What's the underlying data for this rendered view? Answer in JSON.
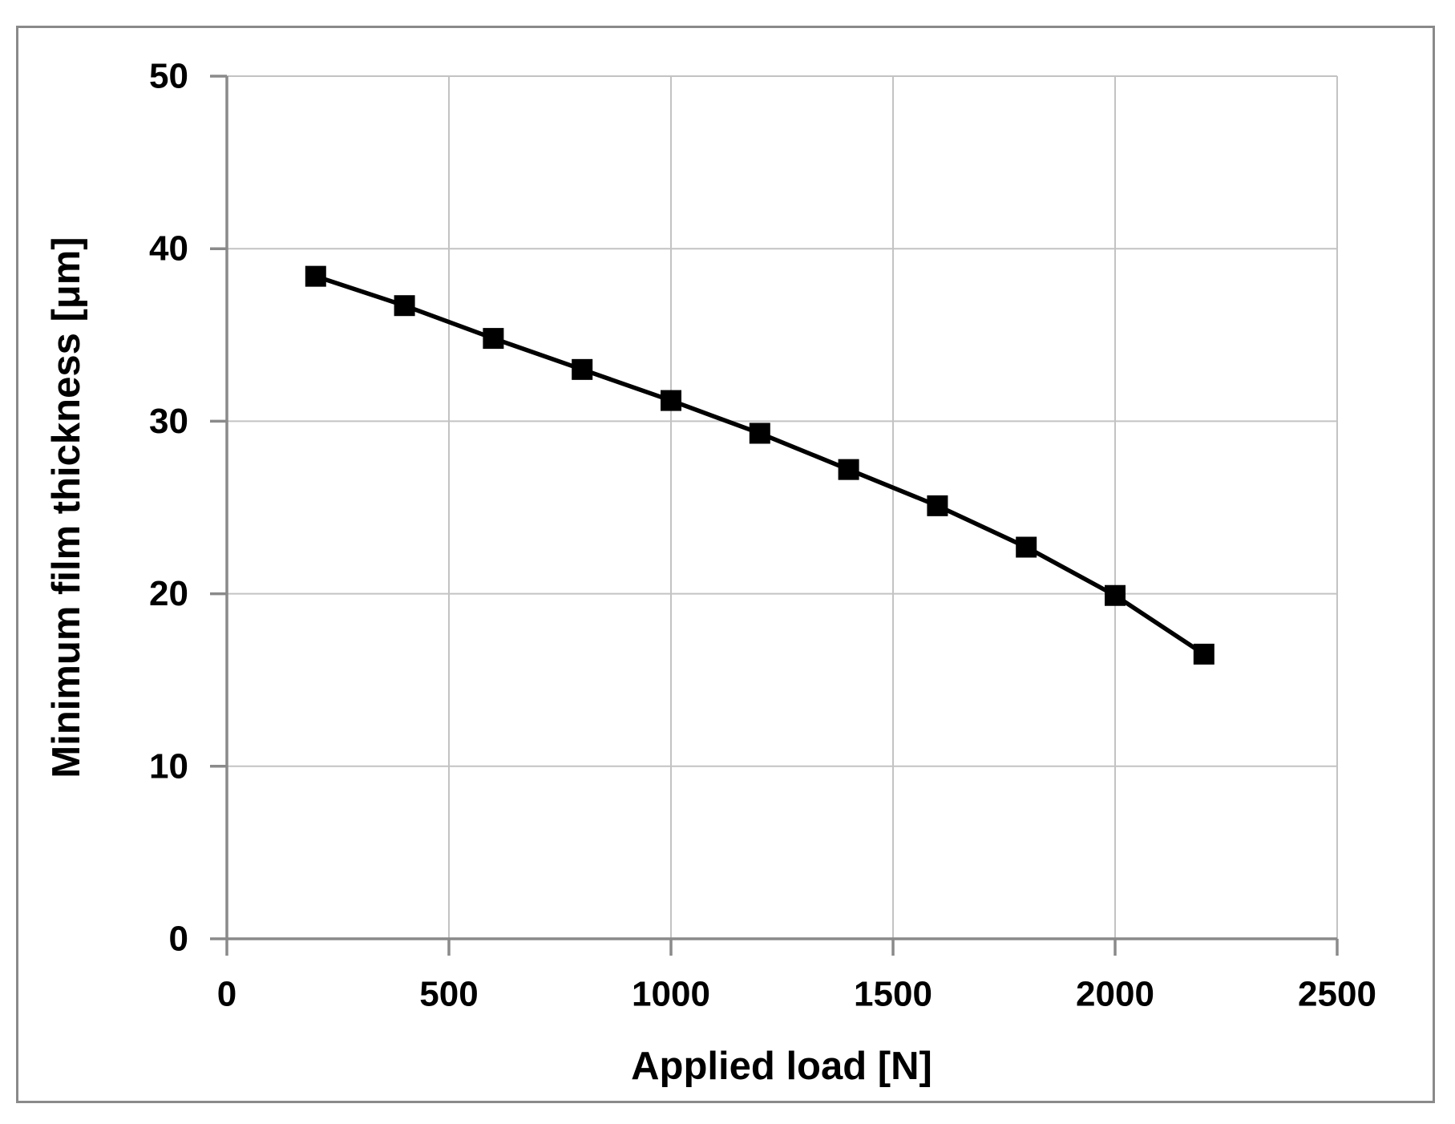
{
  "figure": {
    "background_color": "#ffffff",
    "frame_border_color": "#8a8a8a"
  },
  "chart_data": {
    "type": "line",
    "title": "",
    "xlabel": "Applied load [N]",
    "ylabel": "Minimum film thickness [μm]",
    "x": [
      200,
      400,
      600,
      800,
      1000,
      1200,
      1400,
      1600,
      1800,
      2000,
      2200
    ],
    "series": [
      {
        "name": "minimum-film-thickness",
        "values": [
          38.4,
          36.7,
          34.8,
          33.0,
          31.2,
          29.3,
          27.2,
          25.1,
          22.7,
          19.9,
          16.5
        ]
      }
    ],
    "xlim": [
      0,
      2500
    ],
    "ylim": [
      0,
      50
    ],
    "x_tick_step": 500,
    "y_tick_step": 10,
    "x_tick_labels": [
      "0",
      "500",
      "1000",
      "1500",
      "2000",
      "2500"
    ],
    "y_tick_labels": [
      "0",
      "10",
      "20",
      "30",
      "40",
      "50"
    ],
    "grid": "on",
    "legend": "none",
    "marker": "filled-square",
    "line_color": "#000000",
    "marker_color": "#000000",
    "gridline_color": "#c3c3c3",
    "axis_color": "#8a8a8a",
    "tick_label_color": "#000000",
    "axis_title_color": "#000000"
  }
}
